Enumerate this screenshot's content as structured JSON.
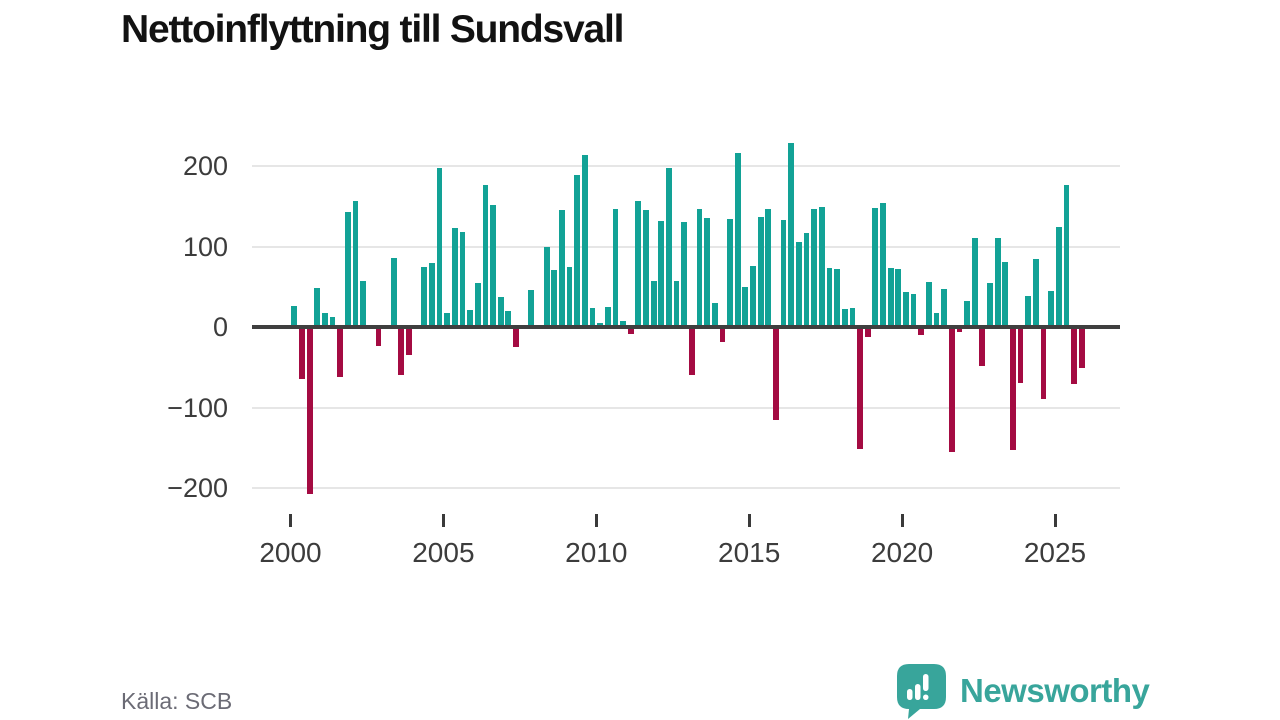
{
  "title": "Nettoinflyttning till Sundsvall",
  "source": "Källa: SCB",
  "brand": {
    "name": "Newsworthy",
    "icon": "newsworthy-speech-bubble-bar-chart-icon"
  },
  "colors": {
    "positive_bar": "#12a296",
    "negative_bar": "#a40b42",
    "brand_teal": "#38a59b",
    "gridline": "#e6e6e6",
    "zero_line": "#3f3f3f",
    "axis_text": "#3c3c3c",
    "source_text": "#6b6b75"
  },
  "chart_data": {
    "type": "bar",
    "title": "Nettoinflyttning till Sundsvall",
    "frequency": "quarterly",
    "x_start": "2000-Q1",
    "x_end": "2025-Q4",
    "values": [
      26,
      -64,
      -208,
      48,
      18,
      12,
      -62,
      143,
      156,
      57,
      0,
      -23,
      3,
      86,
      -60,
      -35,
      0,
      74,
      79,
      198,
      17,
      123,
      118,
      21,
      55,
      177,
      152,
      37,
      20,
      -25,
      0,
      46,
      0,
      100,
      71,
      145,
      74,
      189,
      214,
      24,
      5,
      25,
      147,
      7,
      -9,
      156,
      145,
      57,
      132,
      197,
      57,
      130,
      -60,
      147,
      136,
      30,
      -19,
      134,
      216,
      50,
      76,
      137,
      147,
      -115,
      133,
      228,
      105,
      117,
      146,
      149,
      73,
      72,
      22,
      24,
      -151,
      -12,
      148,
      154,
      73,
      72,
      44,
      41,
      -10,
      56,
      18,
      47,
      -155,
      -6,
      32,
      110,
      -48,
      55,
      111,
      81,
      -153,
      -69,
      38,
      84,
      -89,
      45,
      124,
      176,
      -71,
      -51
    ],
    "positive_color": "#12a296",
    "negative_color": "#a40b42",
    "x_ticks": [
      2000,
      2005,
      2010,
      2015,
      2020,
      2025
    ],
    "x_tick_labels": [
      "2000",
      "2005",
      "2010",
      "2015",
      "2020",
      "2025"
    ],
    "y_ticks": [
      200,
      100,
      0,
      -100,
      -200
    ],
    "y_tick_labels": [
      "200",
      "100",
      "0",
      "−100",
      "−200"
    ],
    "ylim": [
      -225,
      238
    ],
    "grid": true,
    "legend": false
  }
}
